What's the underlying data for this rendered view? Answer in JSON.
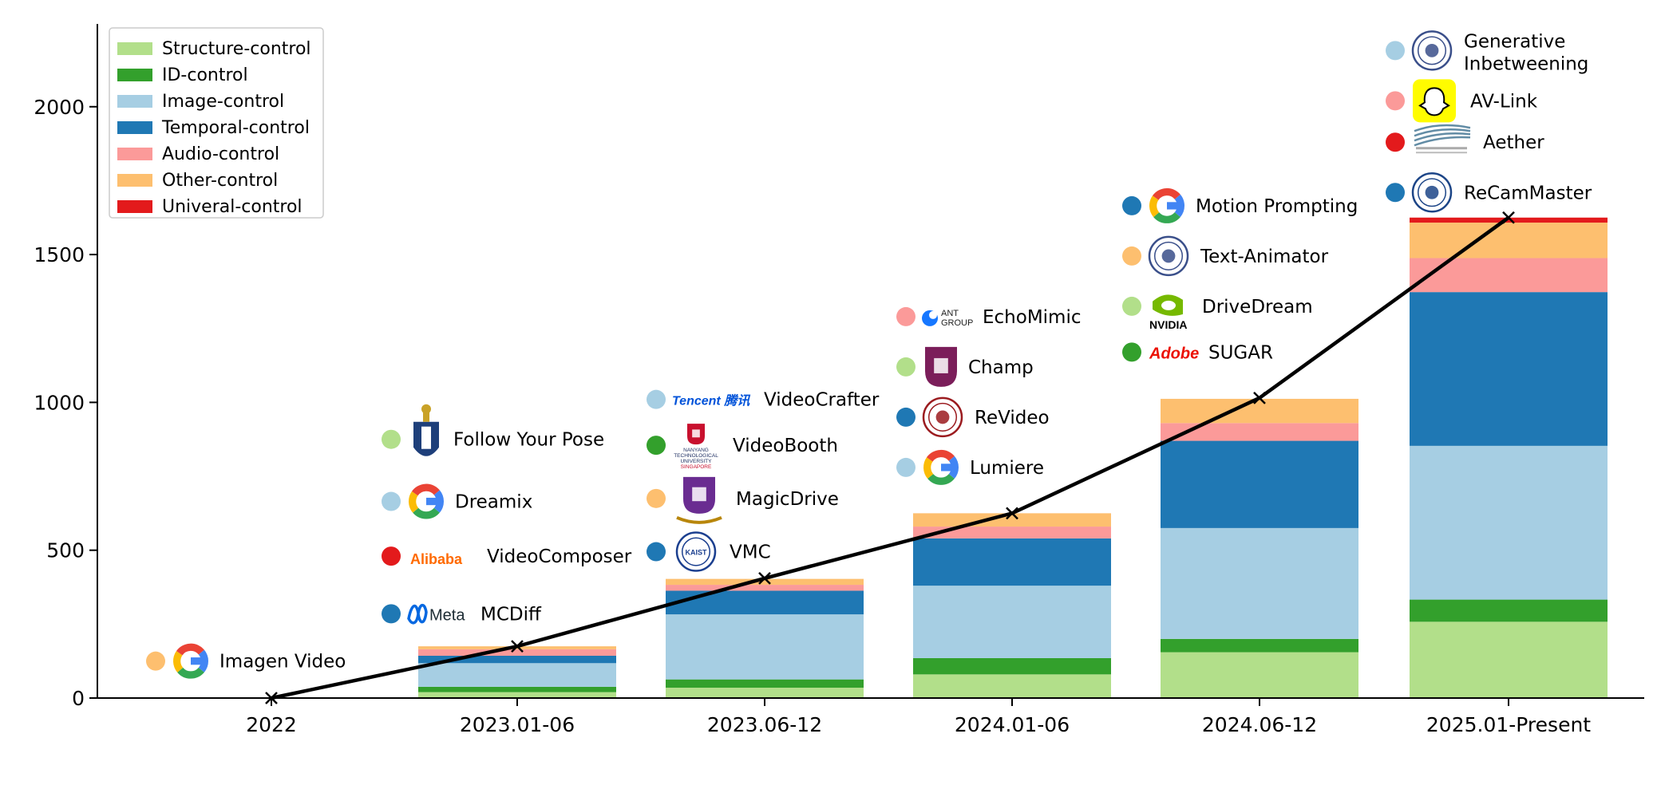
{
  "colors": {
    "Structure-control": "#b2df8a",
    "ID-control": "#33a02c",
    "Image-control": "#a6cee3",
    "Temporal-control": "#1f78b4",
    "Audio-control": "#fb9a99",
    "Other-control": "#fdbf6f",
    "Univeral-control": "#e31a1c"
  },
  "chart_data": {
    "type": "bar",
    "stacked": true,
    "categories": [
      "2022",
      "2023.01-06",
      "2023.06-12",
      "2024.01-06",
      "2024.06-12",
      "2025.01-Present"
    ],
    "series": [
      {
        "name": "Structure-control",
        "values": [
          0,
          20,
          35,
          80,
          155,
          258
        ]
      },
      {
        "name": "ID-control",
        "values": [
          0,
          18,
          28,
          55,
          45,
          75
        ]
      },
      {
        "name": "Image-control",
        "values": [
          0,
          80,
          220,
          245,
          375,
          520
        ]
      },
      {
        "name": "Temporal-control",
        "values": [
          0,
          25,
          80,
          160,
          295,
          520
        ]
      },
      {
        "name": "Audio-control",
        "values": [
          0,
          22,
          20,
          40,
          60,
          115
        ]
      },
      {
        "name": "Other-control",
        "values": [
          0,
          10,
          20,
          45,
          82,
          120
        ]
      },
      {
        "name": "Univeral-control",
        "values": [
          0,
          0,
          0,
          0,
          0,
          17
        ]
      }
    ],
    "cumulative_line": [
      0,
      175,
      405,
      625,
      1015,
      1625
    ],
    "ylim": [
      0,
      2280
    ],
    "yticks": [
      0,
      500,
      1000,
      1500,
      2000
    ],
    "title": "",
    "xlabel": "",
    "ylabel": "",
    "legend_position": "top-left",
    "grid": false,
    "annotations": [
      {
        "group": 0,
        "items": [
          {
            "label": "Imagen Video",
            "category": "Other-control",
            "logo": "google-logo",
            "value": 125
          }
        ]
      },
      {
        "group": 1,
        "items": [
          {
            "label": "Follow Your Pose",
            "category": "Structure-control",
            "logo": "hkust-logo",
            "value": 875
          },
          {
            "label": "Dreamix",
            "category": "Image-control",
            "logo": "google-logo",
            "value": 665
          },
          {
            "label": "VideoComposer",
            "category": "Univeral-control",
            "logo": "alibaba-logo",
            "logo_text": "Alibaba",
            "value": 480
          },
          {
            "label": "MCDiff",
            "category": "Temporal-control",
            "logo": "meta-logo",
            "logo_text": "Meta",
            "value": 285
          }
        ]
      },
      {
        "group": 2,
        "items": [
          {
            "label": "VideoCrafter",
            "category": "Image-control",
            "logo": "tencent-logo",
            "logo_text": "Tencent 腾讯",
            "value": 1010
          },
          {
            "label": "VideoBooth",
            "category": "ID-control",
            "logo": "ntu-logo",
            "logo_text": "NANYANG TECHNOLOGICAL UNIVERSITY SINGAPORE",
            "value": 855
          },
          {
            "label": "MagicDrive",
            "category": "Other-control",
            "logo": "cuhk-logo",
            "value": 675
          },
          {
            "label": "VMC",
            "category": "Temporal-control",
            "logo": "kaist-logo",
            "logo_text": "KAIST",
            "value": 495
          }
        ]
      },
      {
        "group": 3,
        "items": [
          {
            "label": "EchoMimic",
            "category": "Audio-control",
            "logo": "ant-group-logo",
            "logo_text": "ANT GROUP",
            "value": 1290
          },
          {
            "label": "Champ",
            "category": "Structure-control",
            "logo": "fudan-logo",
            "value": 1120
          },
          {
            "label": "ReVideo",
            "category": "Temporal-control",
            "logo": "pku-logo",
            "value": 950
          },
          {
            "label": "Lumiere",
            "category": "Image-control",
            "logo": "google-logo",
            "value": 780
          }
        ]
      },
      {
        "group": 4,
        "items": [
          {
            "label": "Motion Prompting",
            "category": "Temporal-control",
            "logo": "google-logo",
            "value": 1665
          },
          {
            "label": "Text-Animator",
            "category": "Other-control",
            "logo": "university-seal-logo",
            "value": 1495
          },
          {
            "label": "DriveDream",
            "category": "Structure-control",
            "logo": "nvidia-logo",
            "logo_text": "NVIDIA",
            "value": 1325
          },
          {
            "label": "SUGAR",
            "category": "ID-control",
            "logo": "adobe-logo",
            "logo_text": "Adobe",
            "value": 1170
          }
        ]
      },
      {
        "group": 5,
        "items": [
          {
            "label": "Generative\nInbetweening",
            "category": "Image-control",
            "logo": "university-seal-logo",
            "value": 2190
          },
          {
            "label": "AV-Link",
            "category": "Audio-control",
            "logo": "snapchat-logo",
            "value": 2020
          },
          {
            "label": "Aether",
            "category": "Univeral-control",
            "logo": "shanghai-ai-lab-logo",
            "value": 1880
          },
          {
            "label": "ReCamMaster",
            "category": "Temporal-control",
            "logo": "zju-logo",
            "value": 1710
          }
        ]
      }
    ]
  }
}
